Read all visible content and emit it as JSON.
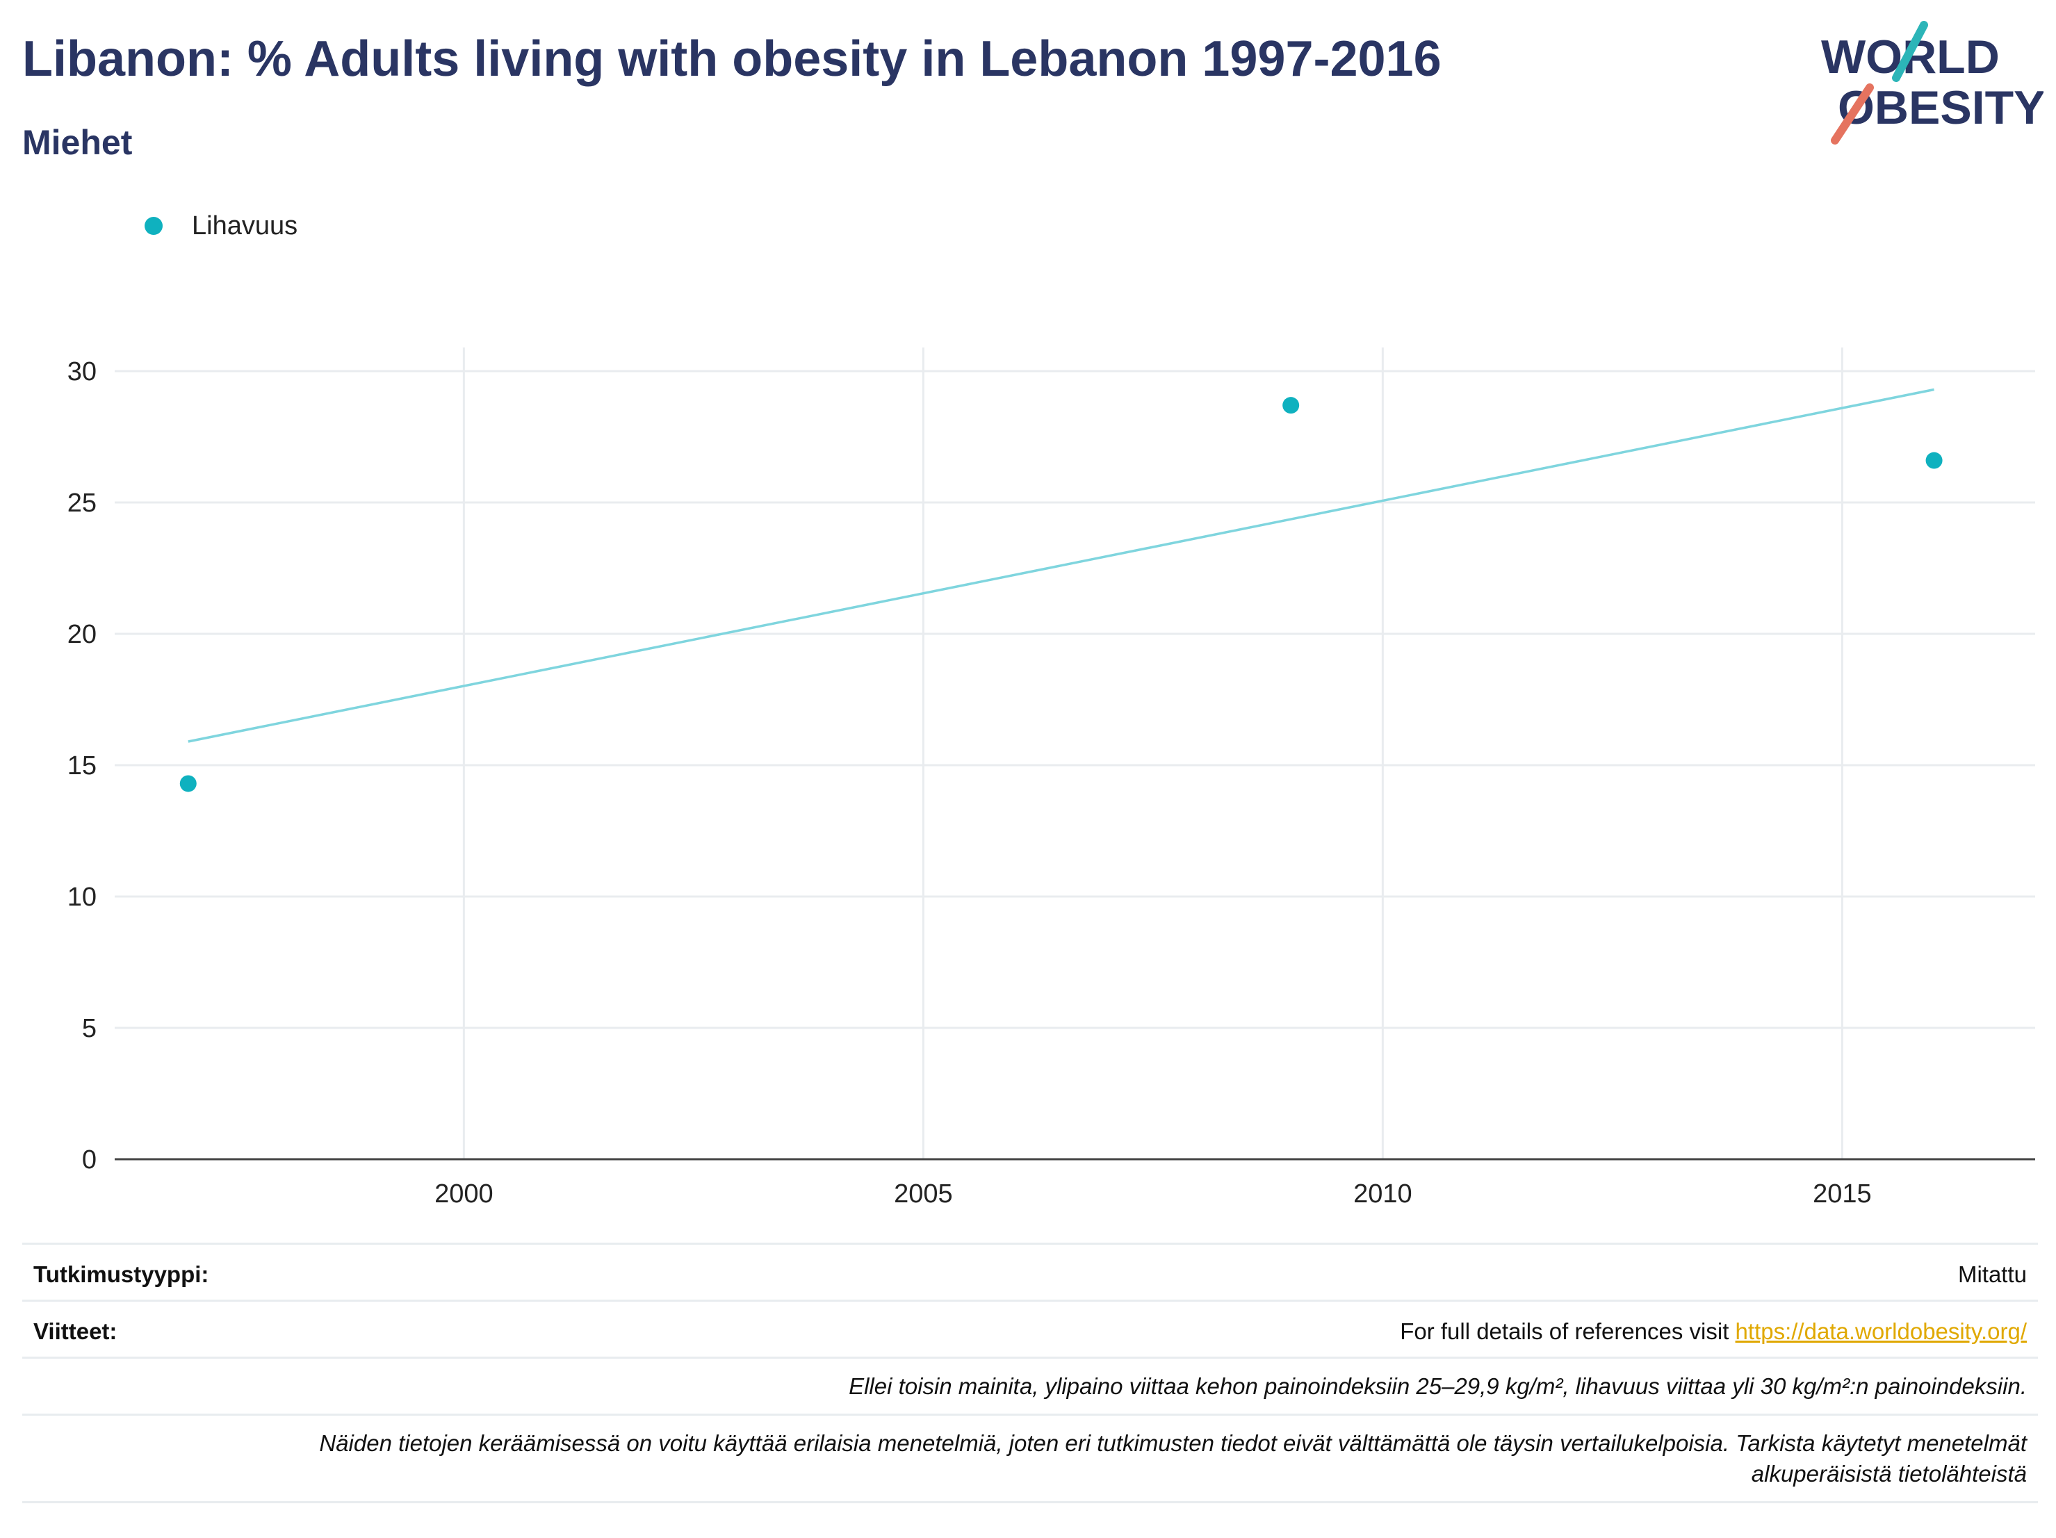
{
  "header": {
    "title": "Libanon: % Adults living with obesity in Lebanon 1997-2016",
    "subtitle": "Miehet"
  },
  "logo": {
    "line1": "WORLD",
    "line2": "OBESITY"
  },
  "legend": {
    "label": "Lihavuus",
    "color": "#0fb1bf"
  },
  "chart_data": {
    "type": "scatter",
    "title": "Libanon: % Adults living with obesity in Lebanon 1997-2016",
    "subtitle": "Miehet",
    "xlabel": "",
    "ylabel": "",
    "x_ticks": [
      2000,
      2005,
      2010,
      2015
    ],
    "y_ticks": [
      0,
      5,
      10,
      15,
      20,
      25,
      30
    ],
    "xlim": [
      1996.2,
      2017.1
    ],
    "ylim": [
      0,
      30.9
    ],
    "grid": true,
    "legend_position": "top-left",
    "series": [
      {
        "name": "Lihavuus",
        "color": "#0fb1bf",
        "points": [
          {
            "x": 1997,
            "y": 14.3
          },
          {
            "x": 2009,
            "y": 28.7
          },
          {
            "x": 2016,
            "y": 26.6
          }
        ]
      }
    ],
    "trendline": {
      "color": "#7fd5de",
      "points": [
        {
          "x": 1997,
          "y": 15.9
        },
        {
          "x": 2016,
          "y": 29.3
        }
      ]
    }
  },
  "footer": {
    "study_type_label": "Tutkimustyyppi:",
    "study_type_value": "Mitattu",
    "references_label": "Viitteet:",
    "references_text": "For full details of references visit ",
    "references_link": "https://data.worldobesity.org/",
    "note1": "Ellei toisin mainita, ylipaino viittaa kehon painoindeksiin 25–29,9 kg/m², lihavuus viittaa yli 30 kg/m²:n painoindeksiin.",
    "note2_line1": "Näiden tietojen keräämisessä on voitu käyttää erilaisia menetelmiä, joten eri tutkimusten tiedot eivät välttämättä ole täysin vertailukelpoisia. Tarkista käytetyt menetelmät",
    "note2_line2": "alkuperäisistä tietolähteistä"
  }
}
